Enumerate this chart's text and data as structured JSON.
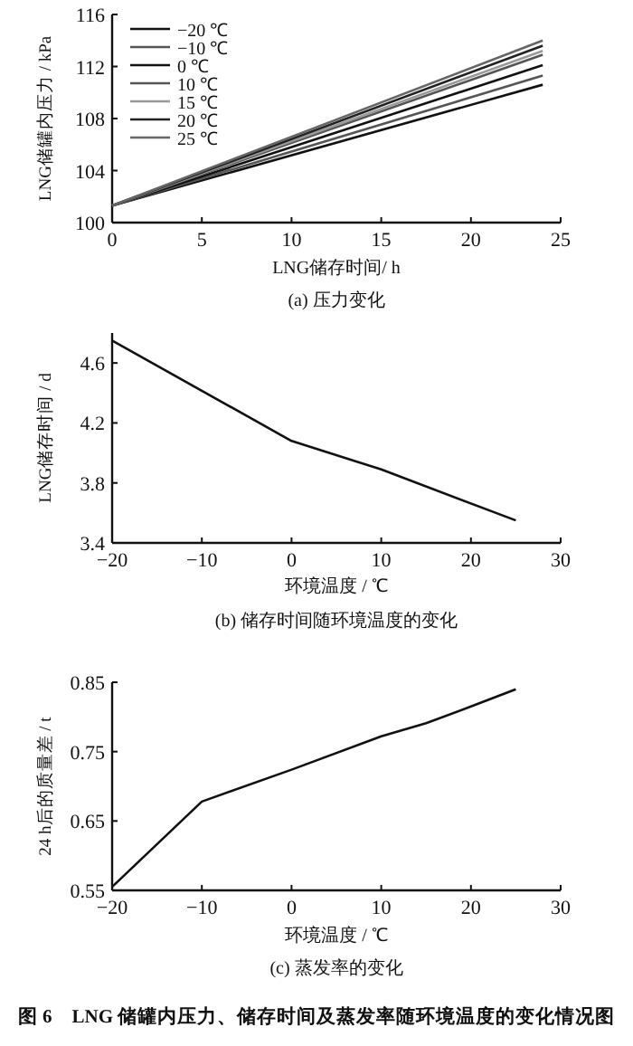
{
  "chart_data": [
    {
      "type": "line",
      "title": "(a) 压力变化",
      "xlabel": "LNG储存时间/ h",
      "ylabel": "LNG储罐内压力 / kPa",
      "xlim": [
        0,
        25
      ],
      "xticks": [
        0,
        5,
        10,
        15,
        20,
        25
      ],
      "ylim": [
        100,
        116
      ],
      "yticks": [
        100,
        104,
        108,
        112,
        116
      ],
      "legend": "top left",
      "grid": false,
      "marker": "none",
      "line_style": "solid",
      "series": [
        {
          "name": "−20 ℃",
          "color": "#111111",
          "x": [
            0,
            24
          ],
          "values": [
            101.3,
            110.6
          ]
        },
        {
          "name": "−10 ℃",
          "color": "#555555",
          "x": [
            0,
            24
          ],
          "values": [
            101.3,
            111.3
          ]
        },
        {
          "name": "0 ℃",
          "color": "#111111",
          "x": [
            0,
            24
          ],
          "values": [
            101.3,
            112.1
          ]
        },
        {
          "name": "10 ℃",
          "color": "#555555",
          "x": [
            0,
            24
          ],
          "values": [
            101.3,
            112.9
          ]
        },
        {
          "name": "15 ℃",
          "color": "#999999",
          "x": [
            0,
            24
          ],
          "values": [
            101.3,
            113.2
          ]
        },
        {
          "name": "20 ℃",
          "color": "#222222",
          "x": [
            0,
            24
          ],
          "values": [
            101.3,
            113.6
          ]
        },
        {
          "name": "25 ℃",
          "color": "#666666",
          "x": [
            0,
            24
          ],
          "values": [
            101.3,
            114.0
          ]
        }
      ]
    },
    {
      "type": "line",
      "title": "(b) 储存时间随环境温度的变化",
      "xlabel": "环境温度 / ℃",
      "ylabel": "LNG储存时间 / d",
      "xlim": [
        -20,
        30
      ],
      "xticks": [
        -20,
        -10,
        0,
        10,
        20,
        30
      ],
      "ylim": [
        3.4,
        4.8
      ],
      "yticks": [
        3.4,
        3.8,
        4.2,
        4.6
      ],
      "grid": false,
      "marker": "none",
      "line_style": "solid",
      "series": [
        {
          "color": "#111111",
          "x": [
            -20,
            0,
            10,
            25
          ],
          "values": [
            4.75,
            4.08,
            3.89,
            3.55
          ]
        }
      ]
    },
    {
      "type": "line",
      "title": "(c) 蒸发率的变化",
      "xlabel": "环境温度 / ℃",
      "ylabel": "24 h后的质量差 / t",
      "xlim": [
        -20,
        30
      ],
      "xticks": [
        -20,
        -10,
        0,
        10,
        20,
        30
      ],
      "ylim": [
        0.55,
        0.85
      ],
      "yticks": [
        0.55,
        0.65,
        0.75,
        0.85
      ],
      "grid": false,
      "marker": "none",
      "line_style": "solid",
      "annotations": [
        "图 6　LNG 储罐内压力、储存时间及蒸发率随环境温度的变化情况图"
      ],
      "series": [
        {
          "color": "#111111",
          "x": [
            -20,
            -10,
            0,
            10,
            15,
            20,
            25
          ],
          "values": [
            0.555,
            0.678,
            0.724,
            0.772,
            0.791,
            0.815,
            0.84
          ]
        }
      ]
    }
  ]
}
